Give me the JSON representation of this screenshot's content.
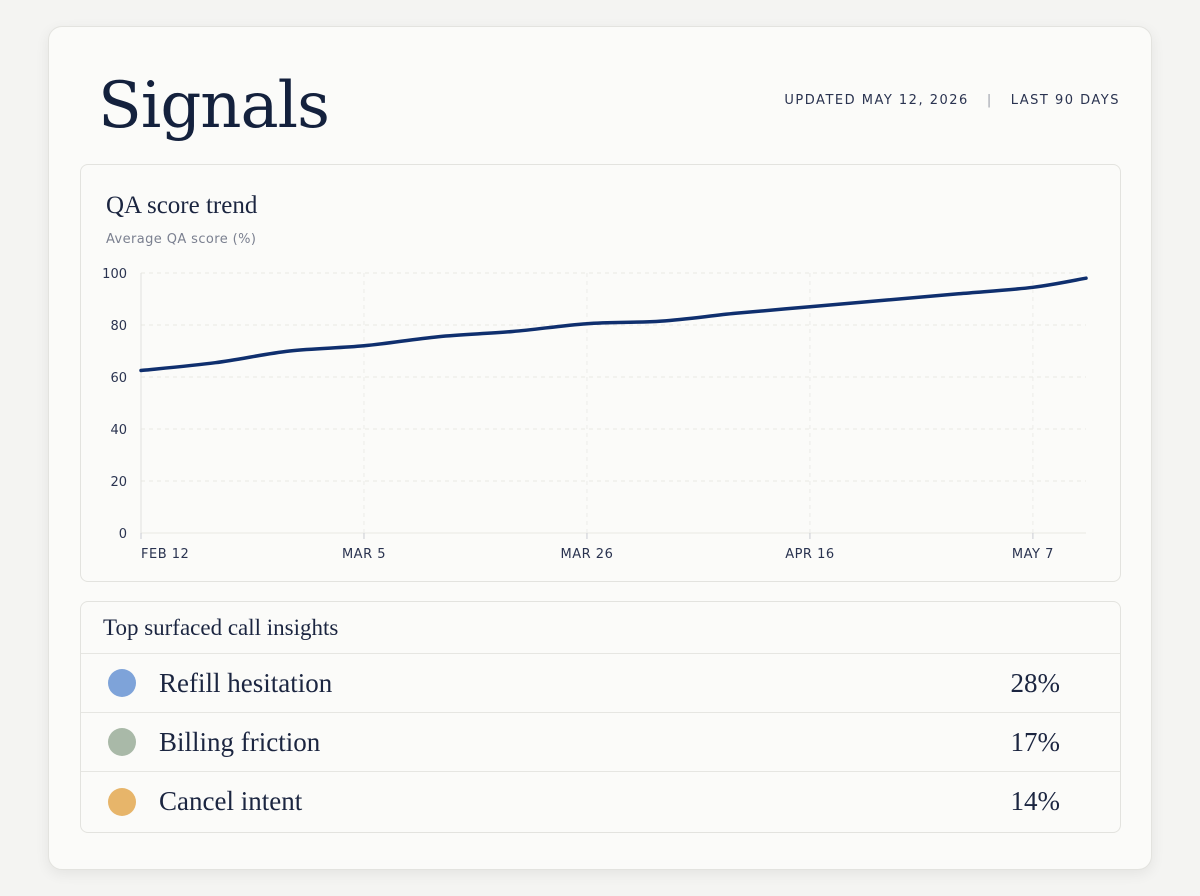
{
  "header": {
    "title": "Signals",
    "updated": "UPDATED MAY 12, 2026",
    "separator": "|",
    "range": "LAST 90 DAYS"
  },
  "chart_panel": {
    "title": "QA score trend",
    "subtitle": "Average QA score (%)"
  },
  "chart_data": {
    "type": "line",
    "title": "QA score trend",
    "ylabel": "Average QA score (%)",
    "xlabel": "",
    "ylim": [
      0,
      100
    ],
    "yticks": [
      "0",
      "20",
      "40",
      "60",
      "80",
      "100"
    ],
    "xticks": [
      "FEB 12",
      "MAR 5",
      "MAR 26",
      "APR 16",
      "MAY 7"
    ],
    "grid": true,
    "line_color": "#0f2f6e",
    "series": [
      {
        "x": [
          "2026-02-12",
          "2026-02-19",
          "2026-02-26",
          "2026-03-05",
          "2026-03-12",
          "2026-03-19",
          "2026-03-26",
          "2026-04-02",
          "2026-04-09",
          "2026-04-16",
          "2026-04-23",
          "2026-04-30",
          "2026-05-07",
          "2026-05-12"
        ],
        "values": [
          62.5,
          65.5,
          70,
          72,
          75.5,
          77.5,
          80.5,
          81.5,
          84.5,
          87,
          89.5,
          92,
          94.5,
          98
        ]
      }
    ]
  },
  "insights": {
    "title": "Top surfaced call insights",
    "items": [
      {
        "label": "Refill hesitation",
        "value": "28%",
        "color": "#7ea3d9"
      },
      {
        "label": "Billing friction",
        "value": "17%",
        "color": "#a9b9a8"
      },
      {
        "label": "Cancel intent",
        "value": "14%",
        "color": "#e7b56a"
      }
    ]
  }
}
